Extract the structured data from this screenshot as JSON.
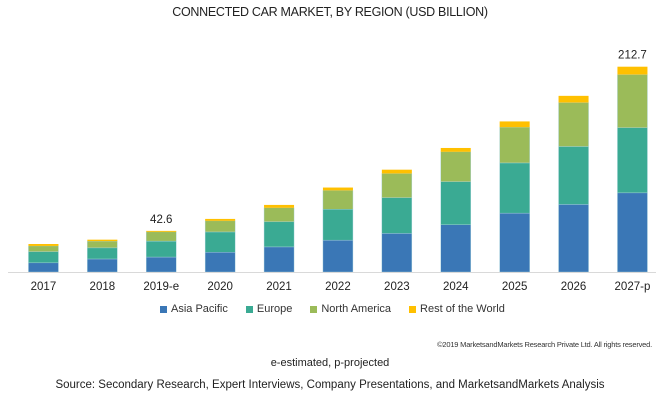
{
  "chart_data": {
    "type": "bar",
    "stacked": true,
    "title": "CONNECTED CAR MARKET, BY REGION (USD BILLION)",
    "xlabel": "",
    "ylabel": "",
    "ylim": [
      0,
      230
    ],
    "grid": false,
    "legend_position": "bottom",
    "categories": [
      "2017",
      "2018",
      "2019-e",
      "2020",
      "2021",
      "2022",
      "2023",
      "2024",
      "2025",
      "2026",
      "2027-p"
    ],
    "series": [
      {
        "name": "Asia Pacific",
        "color": "#3a77b6",
        "values": [
          9.5,
          13.5,
          15.5,
          20.5,
          26,
          33,
          40,
          49,
          61,
          70,
          82
        ]
      },
      {
        "name": "Europe",
        "color": "#3aaa93",
        "values": [
          11.5,
          11.5,
          16.5,
          21,
          26,
          32,
          37,
          44.5,
          52,
          60,
          67.5
        ]
      },
      {
        "name": "North America",
        "color": "#9bbb59",
        "values": [
          6,
          7,
          9.6,
          11.5,
          14.5,
          19.5,
          25,
          31,
          37,
          45.5,
          55
        ]
      },
      {
        "name": "Rest of the World",
        "color": "#ffc000",
        "values": [
          2,
          1.5,
          1,
          2,
          3,
          3,
          4,
          4,
          6,
          7,
          8.2
        ]
      }
    ],
    "data_labels": [
      {
        "category": "2019-e",
        "text": "42.6"
      },
      {
        "category": "2027-p",
        "text": "212.7"
      }
    ]
  },
  "footer": {
    "copyright": "©2019 MarketsandMarkets Research Private Ltd. All rights reserved.",
    "note": "e-estimated, p-projected",
    "source": "Source: Secondary Research, Expert Interviews, Company Presentations, and MarketsandMarkets Analysis"
  }
}
